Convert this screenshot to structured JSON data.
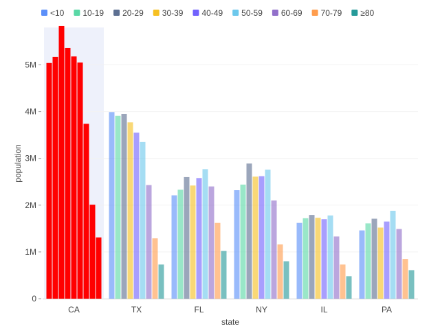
{
  "chart_data": {
    "type": "bar",
    "xlabel": "state",
    "ylabel": "population",
    "categories": [
      "CA",
      "TX",
      "FL",
      "NY",
      "IL",
      "PA"
    ],
    "highlighted_category": "CA",
    "highlight_color": "#ff0000",
    "y_ticks": [
      {
        "value": 0,
        "label": "0"
      },
      {
        "value": 1000000,
        "label": "1M"
      },
      {
        "value": 2000000,
        "label": "2M"
      },
      {
        "value": 3000000,
        "label": "3M"
      },
      {
        "value": 4000000,
        "label": "4M"
      },
      {
        "value": 5000000,
        "label": "5M"
      }
    ],
    "ylim": [
      0,
      5800000
    ],
    "grid": "horizontal",
    "legend_position": "top-left",
    "series": [
      {
        "name": "<10",
        "color": "#5b8ff9",
        "values": [
          5040000,
          3990000,
          2210000,
          2320000,
          1620000,
          1460000
        ]
      },
      {
        "name": "10-19",
        "color": "#5ad8a6",
        "values": [
          5170000,
          3910000,
          2330000,
          2440000,
          1720000,
          1610000
        ]
      },
      {
        "name": "20-29",
        "color": "#5d7092",
        "values": [
          5830000,
          3950000,
          2600000,
          2890000,
          1790000,
          1710000
        ]
      },
      {
        "name": "30-39",
        "color": "#f6c022",
        "values": [
          5360000,
          3770000,
          2420000,
          2610000,
          1730000,
          1520000
        ]
      },
      {
        "name": "40-49",
        "color": "#7262fd",
        "values": [
          5180000,
          3550000,
          2580000,
          2620000,
          1700000,
          1650000
        ]
      },
      {
        "name": "50-59",
        "color": "#6dc8ec",
        "values": [
          5050000,
          3350000,
          2770000,
          2760000,
          1780000,
          1880000
        ]
      },
      {
        "name": "60-69",
        "color": "#9270ca",
        "values": [
          3740000,
          2430000,
          2400000,
          2100000,
          1330000,
          1490000
        ]
      },
      {
        "name": "70-79",
        "color": "#ff9d4d",
        "values": [
          2010000,
          1290000,
          1620000,
          1160000,
          730000,
          850000
        ]
      },
      {
        "name": "≥80",
        "color": "#269a99",
        "values": [
          1310000,
          730000,
          1020000,
          800000,
          480000,
          610000
        ]
      }
    ]
  }
}
